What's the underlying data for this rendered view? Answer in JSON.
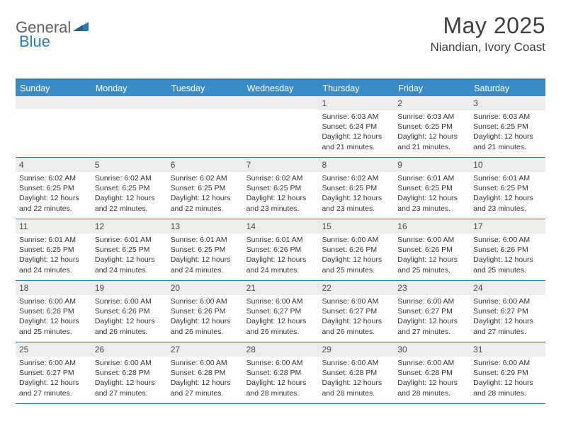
{
  "brand": {
    "part1": "General",
    "part2": "Blue"
  },
  "title": "May 2025",
  "location": "Niandian, Ivory Coast",
  "colors": {
    "header_bg": "#3b8bc7",
    "accent_line": "#2b7ab8",
    "daynum_bg": "#ededed",
    "text": "#333333",
    "logo_gray": "#5f5f5f",
    "logo_blue": "#2b7ab8"
  },
  "weekdays": [
    "Sunday",
    "Monday",
    "Tuesday",
    "Wednesday",
    "Thursday",
    "Friday",
    "Saturday"
  ],
  "weeks": [
    [
      {
        "n": "",
        "sunrise": "",
        "sunset": "",
        "daylight": ""
      },
      {
        "n": "",
        "sunrise": "",
        "sunset": "",
        "daylight": ""
      },
      {
        "n": "",
        "sunrise": "",
        "sunset": "",
        "daylight": ""
      },
      {
        "n": "",
        "sunrise": "",
        "sunset": "",
        "daylight": ""
      },
      {
        "n": "1",
        "sunrise": "Sunrise: 6:03 AM",
        "sunset": "Sunset: 6:24 PM",
        "daylight": "Daylight: 12 hours and 21 minutes."
      },
      {
        "n": "2",
        "sunrise": "Sunrise: 6:03 AM",
        "sunset": "Sunset: 6:25 PM",
        "daylight": "Daylight: 12 hours and 21 minutes."
      },
      {
        "n": "3",
        "sunrise": "Sunrise: 6:03 AM",
        "sunset": "Sunset: 6:25 PM",
        "daylight": "Daylight: 12 hours and 21 minutes."
      }
    ],
    [
      {
        "n": "4",
        "sunrise": "Sunrise: 6:02 AM",
        "sunset": "Sunset: 6:25 PM",
        "daylight": "Daylight: 12 hours and 22 minutes."
      },
      {
        "n": "5",
        "sunrise": "Sunrise: 6:02 AM",
        "sunset": "Sunset: 6:25 PM",
        "daylight": "Daylight: 12 hours and 22 minutes."
      },
      {
        "n": "6",
        "sunrise": "Sunrise: 6:02 AM",
        "sunset": "Sunset: 6:25 PM",
        "daylight": "Daylight: 12 hours and 22 minutes."
      },
      {
        "n": "7",
        "sunrise": "Sunrise: 6:02 AM",
        "sunset": "Sunset: 6:25 PM",
        "daylight": "Daylight: 12 hours and 23 minutes."
      },
      {
        "n": "8",
        "sunrise": "Sunrise: 6:02 AM",
        "sunset": "Sunset: 6:25 PM",
        "daylight": "Daylight: 12 hours and 23 minutes."
      },
      {
        "n": "9",
        "sunrise": "Sunrise: 6:01 AM",
        "sunset": "Sunset: 6:25 PM",
        "daylight": "Daylight: 12 hours and 23 minutes."
      },
      {
        "n": "10",
        "sunrise": "Sunrise: 6:01 AM",
        "sunset": "Sunset: 6:25 PM",
        "daylight": "Daylight: 12 hours and 23 minutes."
      }
    ],
    [
      {
        "n": "11",
        "sunrise": "Sunrise: 6:01 AM",
        "sunset": "Sunset: 6:25 PM",
        "daylight": "Daylight: 12 hours and 24 minutes."
      },
      {
        "n": "12",
        "sunrise": "Sunrise: 6:01 AM",
        "sunset": "Sunset: 6:25 PM",
        "daylight": "Daylight: 12 hours and 24 minutes."
      },
      {
        "n": "13",
        "sunrise": "Sunrise: 6:01 AM",
        "sunset": "Sunset: 6:25 PM",
        "daylight": "Daylight: 12 hours and 24 minutes."
      },
      {
        "n": "14",
        "sunrise": "Sunrise: 6:01 AM",
        "sunset": "Sunset: 6:26 PM",
        "daylight": "Daylight: 12 hours and 24 minutes."
      },
      {
        "n": "15",
        "sunrise": "Sunrise: 6:00 AM",
        "sunset": "Sunset: 6:26 PM",
        "daylight": "Daylight: 12 hours and 25 minutes."
      },
      {
        "n": "16",
        "sunrise": "Sunrise: 6:00 AM",
        "sunset": "Sunset: 6:26 PM",
        "daylight": "Daylight: 12 hours and 25 minutes."
      },
      {
        "n": "17",
        "sunrise": "Sunrise: 6:00 AM",
        "sunset": "Sunset: 6:26 PM",
        "daylight": "Daylight: 12 hours and 25 minutes."
      }
    ],
    [
      {
        "n": "18",
        "sunrise": "Sunrise: 6:00 AM",
        "sunset": "Sunset: 6:26 PM",
        "daylight": "Daylight: 12 hours and 25 minutes."
      },
      {
        "n": "19",
        "sunrise": "Sunrise: 6:00 AM",
        "sunset": "Sunset: 6:26 PM",
        "daylight": "Daylight: 12 hours and 26 minutes."
      },
      {
        "n": "20",
        "sunrise": "Sunrise: 6:00 AM",
        "sunset": "Sunset: 6:26 PM",
        "daylight": "Daylight: 12 hours and 26 minutes."
      },
      {
        "n": "21",
        "sunrise": "Sunrise: 6:00 AM",
        "sunset": "Sunset: 6:27 PM",
        "daylight": "Daylight: 12 hours and 26 minutes."
      },
      {
        "n": "22",
        "sunrise": "Sunrise: 6:00 AM",
        "sunset": "Sunset: 6:27 PM",
        "daylight": "Daylight: 12 hours and 26 minutes."
      },
      {
        "n": "23",
        "sunrise": "Sunrise: 6:00 AM",
        "sunset": "Sunset: 6:27 PM",
        "daylight": "Daylight: 12 hours and 27 minutes."
      },
      {
        "n": "24",
        "sunrise": "Sunrise: 6:00 AM",
        "sunset": "Sunset: 6:27 PM",
        "daylight": "Daylight: 12 hours and 27 minutes."
      }
    ],
    [
      {
        "n": "25",
        "sunrise": "Sunrise: 6:00 AM",
        "sunset": "Sunset: 6:27 PM",
        "daylight": "Daylight: 12 hours and 27 minutes."
      },
      {
        "n": "26",
        "sunrise": "Sunrise: 6:00 AM",
        "sunset": "Sunset: 6:28 PM",
        "daylight": "Daylight: 12 hours and 27 minutes."
      },
      {
        "n": "27",
        "sunrise": "Sunrise: 6:00 AM",
        "sunset": "Sunset: 6:28 PM",
        "daylight": "Daylight: 12 hours and 27 minutes."
      },
      {
        "n": "28",
        "sunrise": "Sunrise: 6:00 AM",
        "sunset": "Sunset: 6:28 PM",
        "daylight": "Daylight: 12 hours and 28 minutes."
      },
      {
        "n": "29",
        "sunrise": "Sunrise: 6:00 AM",
        "sunset": "Sunset: 6:28 PM",
        "daylight": "Daylight: 12 hours and 28 minutes."
      },
      {
        "n": "30",
        "sunrise": "Sunrise: 6:00 AM",
        "sunset": "Sunset: 6:28 PM",
        "daylight": "Daylight: 12 hours and 28 minutes."
      },
      {
        "n": "31",
        "sunrise": "Sunrise: 6:00 AM",
        "sunset": "Sunset: 6:29 PM",
        "daylight": "Daylight: 12 hours and 28 minutes."
      }
    ]
  ]
}
